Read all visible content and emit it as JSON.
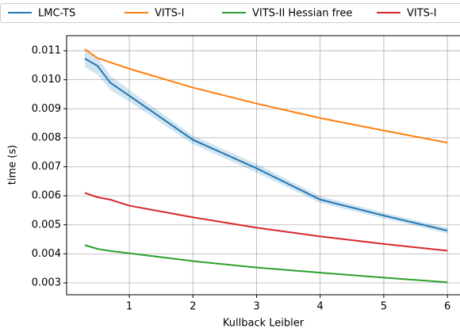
{
  "chart_data": {
    "type": "line",
    "xlabel": "Kullback Leibler",
    "ylabel": "time (s)",
    "x": [
      0.3,
      0.5,
      0.7,
      1,
      2,
      3,
      4,
      5,
      6
    ],
    "series": [
      {
        "name": "LMC-TS",
        "color": "#1f77b4",
        "values": [
          0.01073,
          0.01048,
          0.0099,
          0.00945,
          0.00793,
          0.00695,
          0.00587,
          0.00532,
          0.0048
        ],
        "band": [
          0.0003,
          0.0003,
          0.00025,
          0.0002,
          0.00015,
          0.00015,
          0.00012,
          0.0001,
          0.0001
        ]
      },
      {
        "name": "VITS-I",
        "color": "#ff7f0e",
        "values": [
          0.01105,
          0.01075,
          0.0106,
          0.01038,
          0.00973,
          0.00918,
          0.00868,
          0.00825,
          0.00783
        ]
      },
      {
        "name": "VITS-II Hessian free",
        "color": "#2ca02c",
        "values": [
          0.0043,
          0.00417,
          0.0041,
          0.00402,
          0.00375,
          0.00353,
          0.00335,
          0.00318,
          0.00302
        ]
      },
      {
        "name": "VITS-I",
        "color": "#d62728",
        "values": [
          0.0061,
          0.00595,
          0.00587,
          0.00566,
          0.00526,
          0.0049,
          0.0046,
          0.00434,
          0.00411
        ]
      }
    ],
    "xlim": [
      0.015,
      6.285
    ],
    "xticks": [
      1,
      2,
      3,
      4,
      5,
      6
    ],
    "ylim": [
      0.00259,
      0.01152
    ],
    "yticks": [
      0.003,
      0.004,
      0.005,
      0.006,
      0.007,
      0.008,
      0.009,
      {
        "value": 0.01,
        "label": "0.010"
      },
      0.011
    ],
    "grid": true,
    "legend": "top"
  }
}
